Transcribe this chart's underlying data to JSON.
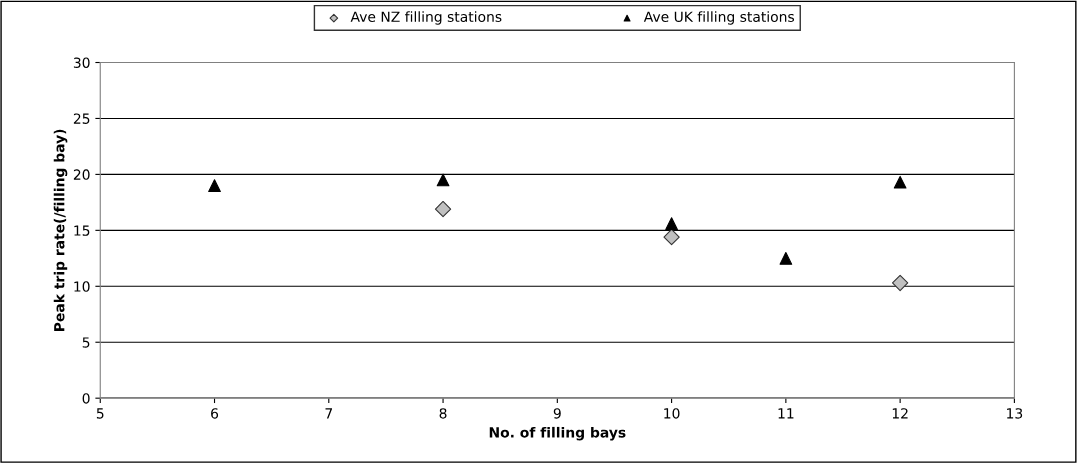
{
  "chart_data": {
    "type": "scatter",
    "xlabel": "No. of filling bays",
    "ylabel": "Peak trip rate(/filling bay)",
    "xlim": [
      5,
      13
    ],
    "xticks": [
      5,
      6,
      7,
      8,
      9,
      10,
      11,
      12,
      13
    ],
    "ylim": [
      0,
      30
    ],
    "yticks": [
      0,
      5,
      10,
      15,
      20,
      25,
      30
    ],
    "grid": "y",
    "legend": "top",
    "series": [
      {
        "name": "Ave NZ filling stations",
        "color": "#c0c0c0",
        "marker": "diamond",
        "x": [
          8,
          10,
          12
        ],
        "values": [
          16.9,
          14.4,
          10.3
        ]
      },
      {
        "name": "Ave UK filling stations",
        "color": "#000000",
        "marker": "triangle",
        "x": [
          6,
          8,
          10,
          11,
          12
        ],
        "values": [
          19.0,
          19.5,
          15.6,
          12.5,
          19.3
        ]
      }
    ]
  }
}
